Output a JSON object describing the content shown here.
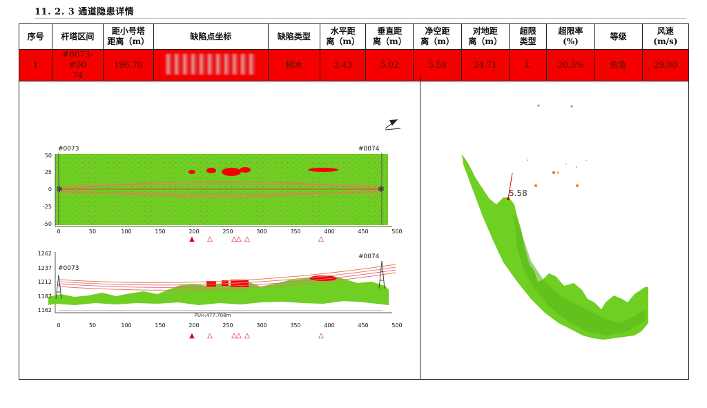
{
  "section_title": "11. 2. 3 通道隐患详情",
  "table": {
    "headers": [
      [
        "序号"
      ],
      [
        "杆塔区间"
      ],
      [
        "距小号塔",
        "距离（m）"
      ],
      [
        "缺陷点坐标"
      ],
      [
        "缺陷类型"
      ],
      [
        "水平距",
        "离（m）"
      ],
      [
        "垂直距",
        "离（m）"
      ],
      [
        "净空距",
        "离（m）"
      ],
      [
        "对地距",
        "离（m）"
      ],
      [
        "超限",
        "类型"
      ],
      [
        "超限率",
        "(%)"
      ],
      [
        "等级"
      ],
      [
        "风速",
        "(m/s)"
      ]
    ],
    "row": {
      "index": "1",
      "span": [
        "#0073-#00",
        "74"
      ],
      "distance": "196.70",
      "defect_type": "树木",
      "horizontal": "2.43",
      "vertical": "5.02",
      "clearance": "5.58",
      "ground": "24.71",
      "overlimit_type": "L",
      "overlimit_rate": "20.3%",
      "level": "危急",
      "wind": "29.00"
    }
  },
  "plan_view": {
    "tower_left": "#0073",
    "tower_right": "#0074",
    "y_ticks": [
      "50",
      "25",
      "0",
      "-25",
      "-50"
    ],
    "x_ticks": [
      "0",
      "50",
      "100",
      "150",
      "200",
      "250",
      "300",
      "350",
      "400",
      "450",
      "500"
    ]
  },
  "profile_view": {
    "tower_left": "#0073",
    "tower_right": "#0074",
    "y_ticks": [
      "1262",
      "1237",
      "1212",
      "1187",
      "1162"
    ],
    "x_ticks": [
      "0",
      "50",
      "100",
      "150",
      "200",
      "250",
      "300",
      "350",
      "400",
      "450",
      "500"
    ],
    "span_label": "PUH:477.708m"
  },
  "cross_section": {
    "clearance_label": "5.58"
  },
  "colors": {
    "defect_red": "#f40000",
    "point_cloud": "#6fcf23",
    "wire": "#e87a5a"
  }
}
